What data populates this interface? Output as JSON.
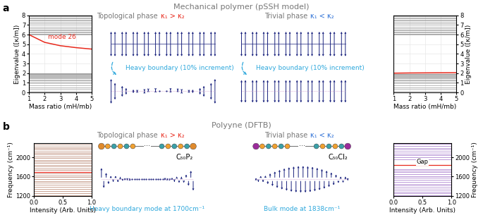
{
  "panels": {
    "a": {
      "label": "a",
      "title": "Mechanical polymer (pSSH model)",
      "phases": [
        {
          "name": "Topological phase",
          "condition": "κ₁ > κ₂"
        },
        {
          "name": "Trivial phase",
          "condition": "κ₁ < κ₂"
        }
      ],
      "transition": "Heavy boundary (10% increment)"
    },
    "b": {
      "label": "b",
      "title": "Polyyne (DFTB)",
      "phases": [
        {
          "name": "Topological phase",
          "condition": "κ₁ > κ₂"
        },
        {
          "name": "Trivial phase",
          "condition": "κ₁ < κ₂"
        }
      ],
      "molecules": [
        "C₅₀P₂",
        "C₅₀Cl₂"
      ],
      "ellipsis": "···",
      "modes": [
        "Heavy boundary mode at 1700cm⁻¹",
        "Bulk mode at 1838cm⁻¹"
      ]
    }
  },
  "chart_data": [
    {
      "type": "line",
      "x_label": "Mass ratio (mH/mb)",
      "y_label": "Eigenvalue ([κ/m])",
      "xlim": [
        1,
        5
      ],
      "ylim": [
        0,
        8
      ],
      "xticks": [
        1,
        2,
        3,
        4,
        5
      ],
      "yticks": [
        0,
        1,
        2,
        3,
        4,
        5,
        6,
        7,
        8
      ],
      "grid": true,
      "x": [
        1,
        2,
        3,
        4,
        5
      ],
      "levels": {
        "color": "#9e9e9e",
        "values": [
          0.15,
          0.35,
          0.55,
          0.75,
          0.92,
          1.08,
          1.22,
          1.35,
          1.46,
          1.56,
          1.65,
          1.72,
          1.79,
          1.84,
          1.89,
          1.93,
          1.96,
          1.98,
          2.0,
          6.02,
          6.06,
          6.12,
          6.2,
          6.3,
          6.42,
          6.55,
          6.7,
          6.85,
          7.0,
          7.15,
          7.3,
          7.45,
          7.58,
          7.7,
          7.8,
          7.88
        ]
      },
      "series": [
        {
          "name": "mode 26",
          "color": "#e8291c",
          "values": [
            6.0,
            5.2,
            4.85,
            4.65,
            4.5
          ]
        }
      ]
    },
    {
      "type": "line",
      "x_label": "Mass ratio (mH/mb)",
      "y_label": "Eigenvalue ([κ/m])",
      "xlim": [
        1,
        5
      ],
      "ylim": [
        0,
        8
      ],
      "xticks": [
        1,
        2,
        3,
        4,
        5
      ],
      "yticks": [
        0,
        1,
        2,
        3,
        4,
        5,
        6,
        7,
        8
      ],
      "grid": true,
      "x": [
        1,
        2,
        3,
        4,
        5
      ],
      "levels": {
        "color": "#9e9e9e",
        "values": [
          0.15,
          0.35,
          0.55,
          0.75,
          0.92,
          1.08,
          1.22,
          1.35,
          1.46,
          1.56,
          1.65,
          1.72,
          1.79,
          1.84,
          1.88,
          1.91,
          1.94,
          6.02,
          6.06,
          6.12,
          6.2,
          6.3,
          6.42,
          6.55,
          6.7,
          6.85,
          7.0,
          7.15,
          7.3,
          7.45,
          7.58,
          7.7,
          7.8,
          7.88
        ]
      },
      "series": [
        {
          "color": "#e8291c",
          "values": [
            2.0,
            2.02,
            2.03,
            2.04,
            2.05
          ]
        }
      ]
    },
    {
      "type": "hlines",
      "x_label": "Intensity (Arb. Units)",
      "y_label": "Frequency (cm⁻¹)",
      "xlim": [
        0,
        1
      ],
      "ylim": [
        1200,
        2300
      ],
      "xticks": [
        {
          "value": 0,
          "label": "0.0"
        },
        0.5,
        {
          "value": 1,
          "label": "1.0"
        }
      ],
      "yticks": [
        1200,
        1600,
        2000
      ],
      "levels": {
        "color": "#b5806a",
        "values": [
          1215,
          1260,
          1300,
          1345,
          1390,
          1430,
          1470,
          1510,
          1550,
          1590,
          1625,
          1660,
          1740,
          1775,
          1810,
          1845,
          1880,
          1915,
          1950,
          1985,
          2020,
          2055,
          2090,
          2125,
          2160,
          2195,
          2230,
          2265
        ]
      },
      "highlight": {
        "color": "#e8291c",
        "value": 1700
      }
    },
    {
      "type": "hlines",
      "x_label": "Intensity (Arb. Units)",
      "y_label": "Frequency (cm⁻¹)",
      "xlim": [
        0,
        1
      ],
      "ylim": [
        1200,
        2300
      ],
      "xticks": [
        {
          "value": 0,
          "label": "0.0"
        },
        0.5,
        {
          "value": 1,
          "label": "1.0"
        }
      ],
      "yticks": [
        1200,
        1600,
        2000
      ],
      "levels": {
        "color": "#a070c8",
        "values": [
          1210,
          1250,
          1290,
          1330,
          1370,
          1410,
          1450,
          1490,
          1530,
          1570,
          1610,
          1650,
          1690,
          1730,
          1760,
          1965,
          2000,
          2040,
          2080,
          2120,
          2160,
          2200,
          2240,
          2280
        ]
      },
      "highlight": {
        "color": "#e8291c",
        "value": 1838
      },
      "annotation": "Gap"
    }
  ]
}
